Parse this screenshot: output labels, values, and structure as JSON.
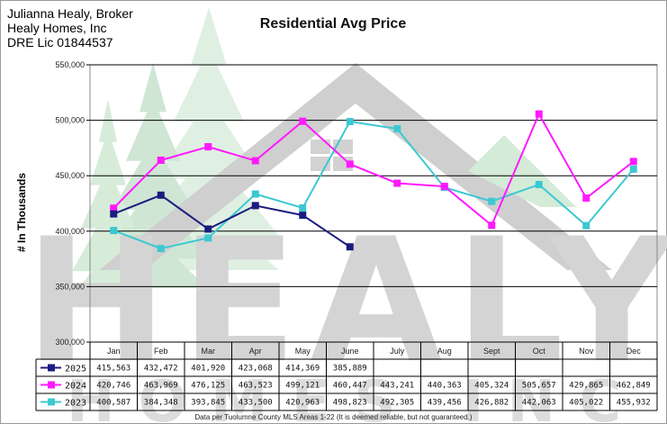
{
  "header": {
    "line1": "Julianna Healy, Broker",
    "line2": "Healy Homes, Inc",
    "line3": "DRE Lic 01844537"
  },
  "footnote": "Data per Tuolumne County MLS Areas 1-22 (It is deemed reliable, but not guaranteed.)",
  "watermark": {
    "line1": "HEALY",
    "line2": "HOMES INC"
  },
  "chart_data": {
    "type": "line",
    "title": "Residential Avg Price",
    "xlabel": "",
    "ylabel": "# In Thousands",
    "ylim": [
      300000,
      550000
    ],
    "yticks": [
      "300,000",
      "350,000",
      "400,000",
      "450,000",
      "500,000",
      "550,000"
    ],
    "grid": true,
    "legend": "data-table",
    "categories": [
      "Jan",
      "Feb",
      "Mar",
      "Apr",
      "May",
      "June",
      "July",
      "Aug",
      "Sept",
      "Oct",
      "Nov",
      "Dec"
    ],
    "series": [
      {
        "name": "2025",
        "color": "#1c1c80",
        "values": [
          415563,
          432472,
          401920,
          423068,
          414369,
          385889,
          null,
          null,
          null,
          null,
          null,
          null
        ],
        "labels": [
          "415,563",
          "432,472",
          "401,920",
          "423,068",
          "414,369",
          "385,889",
          "",
          "",
          "",
          "",
          "",
          ""
        ]
      },
      {
        "name": "2024",
        "color": "#ff19ff",
        "values": [
          420746,
          463969,
          476125,
          463523,
          499121,
          460447,
          443241,
          440363,
          405324,
          505657,
          429865,
          462849
        ],
        "labels": [
          "420,746",
          "463,969",
          "476,125",
          "463,523",
          "499,121",
          "460,447",
          "443,241",
          "440,363",
          "405,324",
          "505,657",
          "429,865",
          "462,849"
        ]
      },
      {
        "name": "2023",
        "color": "#3cc8d2",
        "values": [
          400587,
          384348,
          393845,
          433500,
          420963,
          498823,
          492305,
          439456,
          426882,
          442063,
          405022,
          455932
        ],
        "labels": [
          "400,587",
          "384,348",
          "393,845",
          "433,500",
          "420,963",
          "498,823",
          "492,305",
          "439,456",
          "426,882",
          "442,063",
          "405,022",
          "455,932"
        ]
      }
    ]
  }
}
